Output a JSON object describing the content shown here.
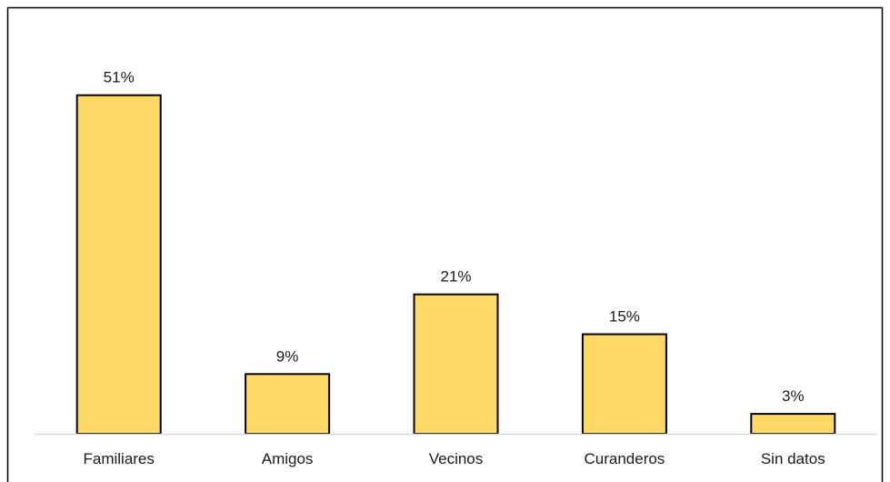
{
  "chart_data": {
    "type": "bar",
    "categories": [
      "Familiares",
      "Amigos",
      "Vecinos",
      "Curanderos",
      "Sin datos"
    ],
    "values": [
      51,
      9,
      21,
      15,
      3
    ],
    "data_labels": [
      "51%",
      "9%",
      "21%",
      "15%",
      "3%"
    ],
    "value_unit": "%",
    "ylim": [
      0,
      60
    ],
    "grid": false,
    "legend": "none",
    "colors": {
      "bar_fill": "#FFD966",
      "bar_stroke": "#000000",
      "axis": "#D9D9D9",
      "frame": "#000000"
    }
  }
}
